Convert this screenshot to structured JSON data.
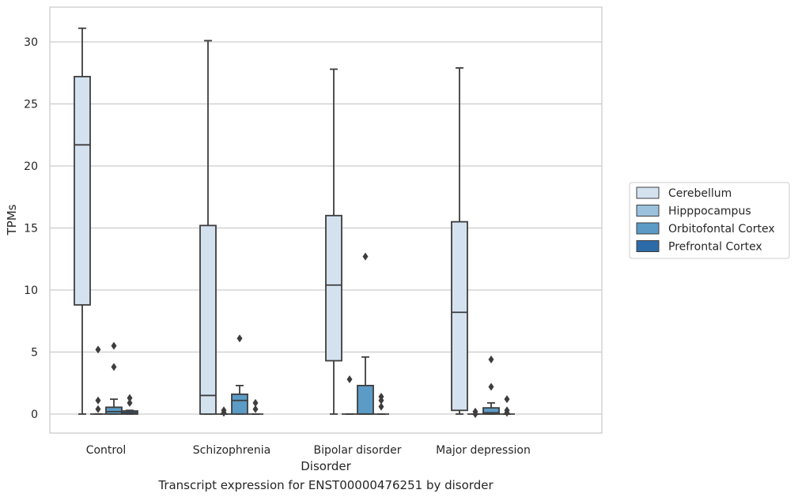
{
  "caption": "Transcript expression for ENST00000476251 by disorder",
  "chart_data": {
    "type": "boxplot",
    "xlabel": "Disorder",
    "ylabel": "TPMs",
    "ylim": [
      -1.5,
      32.8
    ],
    "yticks": [
      0,
      5,
      10,
      15,
      20,
      25,
      30
    ],
    "grid": "horizontal",
    "legend_position": "right",
    "categories": [
      "Control",
      "Schizophrenia",
      "Bipolar disorder",
      "Major depression"
    ],
    "series": [
      {
        "name": "Cerebellum",
        "color": "#d4e2f0",
        "boxes": [
          {
            "whislo": 0,
            "q1": 8.8,
            "med": 21.7,
            "q3": 27.2,
            "whishi": 31.1,
            "fliers": []
          },
          {
            "whislo": 0,
            "q1": 0,
            "med": 1.5,
            "q3": 15.2,
            "whishi": 30.1,
            "fliers": []
          },
          {
            "whislo": 0,
            "q1": 4.3,
            "med": 10.4,
            "q3": 16.0,
            "whishi": 27.8,
            "fliers": []
          },
          {
            "whislo": 0,
            "q1": 0.3,
            "med": 8.2,
            "q3": 15.5,
            "whishi": 27.9,
            "fliers": []
          }
        ]
      },
      {
        "name": "Hipppocampus",
        "color": "#9bc1dd",
        "boxes": [
          {
            "whislo": 0,
            "q1": 0,
            "med": 0,
            "q3": 0,
            "whishi": 0,
            "fliers": [
              0.4,
              1.1,
              5.2
            ]
          },
          {
            "whislo": 0,
            "q1": 0,
            "med": 0,
            "q3": 0,
            "whishi": 0,
            "fliers": [
              0.1,
              0.3
            ]
          },
          {
            "whislo": 0,
            "q1": 0,
            "med": 0,
            "q3": 0,
            "whishi": 0,
            "fliers": [
              2.8
            ]
          },
          {
            "whislo": 0,
            "q1": 0,
            "med": 0,
            "q3": 0,
            "whishi": 0,
            "fliers": [
              0.0,
              0.2
            ]
          }
        ]
      },
      {
        "name": "Orbitofontal Cortex",
        "color": "#5b9bc6",
        "boxes": [
          {
            "whislo": 0,
            "q1": 0,
            "med": 0.2,
            "q3": 0.55,
            "whishi": 1.2,
            "fliers": [
              3.8,
              5.5
            ]
          },
          {
            "whislo": 0,
            "q1": 0,
            "med": 1.1,
            "q3": 1.6,
            "whishi": 2.3,
            "fliers": [
              6.1
            ]
          },
          {
            "whislo": 0,
            "q1": 0,
            "med": 0,
            "q3": 2.3,
            "whishi": 4.6,
            "fliers": [
              12.7
            ]
          },
          {
            "whislo": 0,
            "q1": 0,
            "med": 0.1,
            "q3": 0.5,
            "whishi": 0.9,
            "fliers": [
              2.2,
              4.4
            ]
          }
        ]
      },
      {
        "name": "Prefrontal Cortex",
        "color": "#2c6ba8",
        "boxes": [
          {
            "whislo": 0,
            "q1": 0,
            "med": 0.1,
            "q3": 0.25,
            "whishi": 0.3,
            "fliers": [
              0.9,
              1.3
            ]
          },
          {
            "whislo": 0,
            "q1": 0,
            "med": 0,
            "q3": 0,
            "whishi": 0,
            "fliers": [
              0.4,
              0.9
            ]
          },
          {
            "whislo": 0,
            "q1": 0,
            "med": 0,
            "q3": 0,
            "whishi": 0,
            "fliers": [
              0.6,
              1.1,
              1.4
            ]
          },
          {
            "whislo": 0,
            "q1": 0,
            "med": 0,
            "q3": 0,
            "whishi": 0,
            "fliers": [
              0.1,
              0.3,
              1.2
            ]
          }
        ]
      }
    ]
  }
}
